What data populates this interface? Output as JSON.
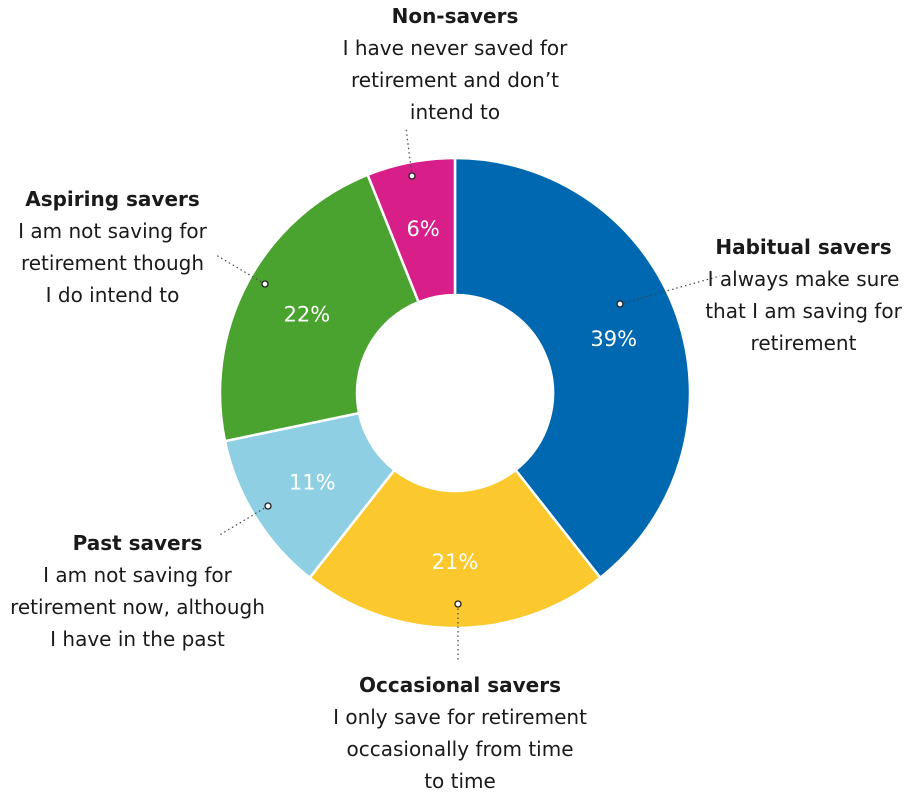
{
  "chart_data": {
    "type": "pie",
    "donut": true,
    "slices": [
      {
        "key": "habitual",
        "label": "Habitual savers",
        "value": 39,
        "value_label": "39%",
        "color": "#0067b1",
        "description": [
          "I always make sure",
          "that I am saving for",
          "retirement"
        ]
      },
      {
        "key": "occasional",
        "label": "Occasional savers",
        "value": 21,
        "value_label": "21%",
        "color": "#fbc82d",
        "description": [
          "I only save for retirement",
          "occasionally from time",
          "to time"
        ]
      },
      {
        "key": "past",
        "label": "Past savers",
        "value": 11,
        "value_label": "11%",
        "color": "#8ecfe3",
        "description": [
          "I am not saving for",
          "retirement now, although",
          "I have in the past"
        ]
      },
      {
        "key": "aspiring",
        "label": "Aspiring savers",
        "value": 22,
        "value_label": "22%",
        "color": "#4aa22f",
        "description": [
          "I am not saving for",
          "retirement though",
          "I do intend to"
        ]
      },
      {
        "key": "non",
        "label": "Non-savers",
        "value": 6,
        "value_label": "6%",
        "color": "#d81e88",
        "description": [
          "I have never saved for",
          "retirement and don’t",
          "intend to"
        ]
      }
    ]
  }
}
